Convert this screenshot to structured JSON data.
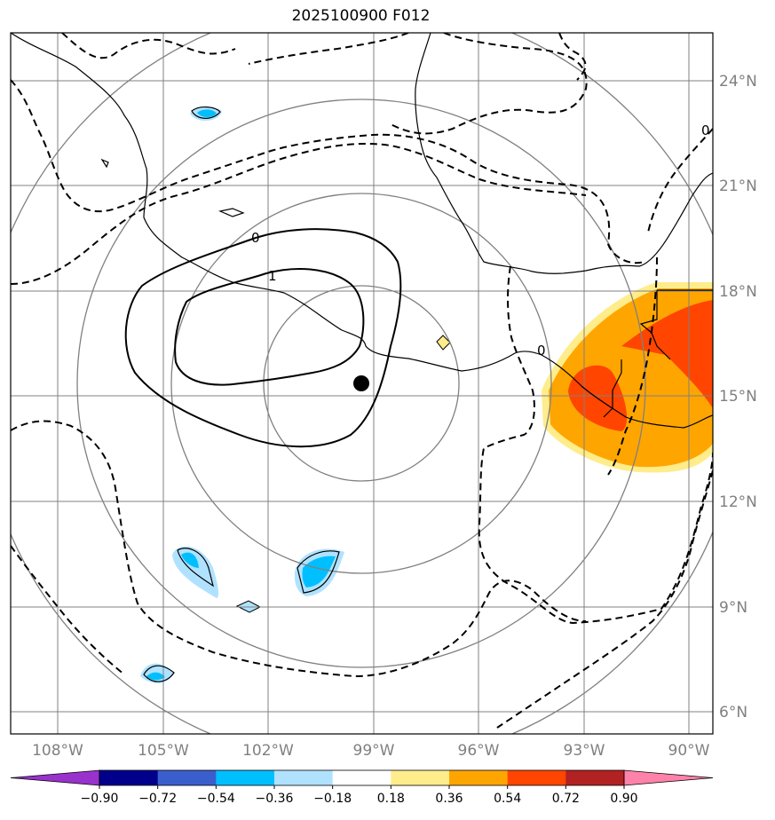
{
  "title": "2025100900 F012",
  "latitude_labels": [
    "24°N",
    "21°N",
    "18°N",
    "15°N",
    "12°N",
    "9°N",
    "6°N"
  ],
  "longitude_labels": [
    "108°W",
    "105°W",
    "102°W",
    "99°W",
    "96°W",
    "93°W",
    "90°W"
  ],
  "contour_labels": [
    "0",
    "1",
    "0",
    "0"
  ],
  "colorbar": {
    "ticks": [
      "−0.90",
      "−0.72",
      "−0.54",
      "−0.36",
      "−0.18",
      "0.18",
      "0.36",
      "0.54",
      "0.72",
      "0.90"
    ],
    "colors": [
      "#9932CC",
      "#00008B",
      "#3A5FCD",
      "#00BFFF",
      "#B0E2FF",
      "#FFFFFF",
      "#FFEC8B",
      "#FFA500",
      "#FF4500",
      "#B22222",
      "#FF82AB"
    ]
  },
  "storm_center": {
    "lat": 15.3,
    "lon": "99.3°W"
  },
  "colors": {
    "grid": "#808080",
    "ring": "#808080",
    "coast": "#000000"
  }
}
